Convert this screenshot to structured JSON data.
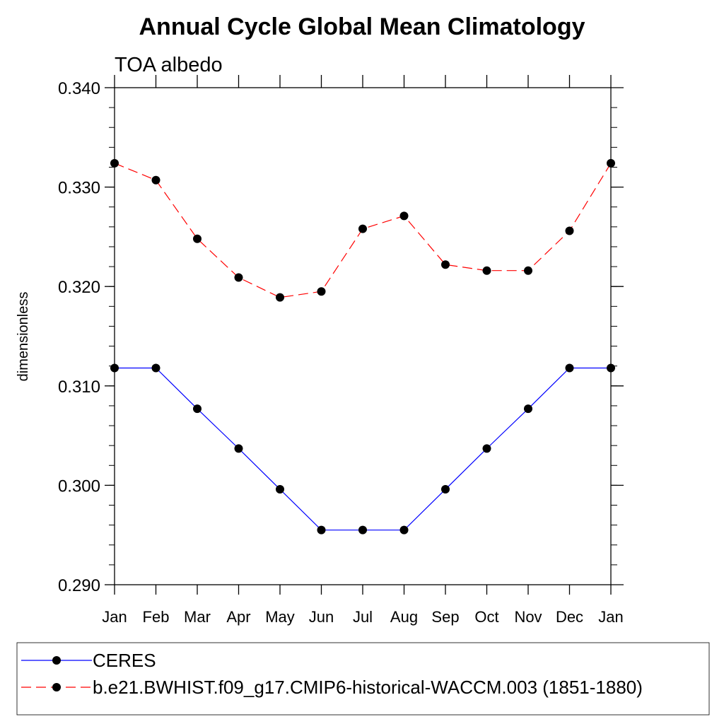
{
  "chart_data": {
    "type": "line",
    "title": "Annual Cycle Global Mean Climatology",
    "subtitle": "TOA albedo",
    "xlabel": "",
    "ylabel": "dimensionless",
    "categories": [
      "Jan",
      "Feb",
      "Mar",
      "Apr",
      "May",
      "Jun",
      "Jul",
      "Aug",
      "Sep",
      "Oct",
      "Nov",
      "Dec",
      "Jan"
    ],
    "ylim": [
      0.29,
      0.34
    ],
    "yticks": [
      "0.290",
      "0.300",
      "0.310",
      "0.320",
      "0.330",
      "0.340"
    ],
    "grid": false,
    "legend_position": "bottom",
    "series": [
      {
        "name": "CERES",
        "color": "#0000ff",
        "line_style": "solid",
        "marker": "filled-circle",
        "values": [
          0.3118,
          0.3118,
          0.3077,
          0.3037,
          0.2996,
          0.2955,
          0.2955,
          0.2955,
          0.2996,
          0.3037,
          0.3077,
          0.3118,
          0.3118
        ]
      },
      {
        "name": "b.e21.BWHIST.f09_g17.CMIP6-historical-WACCM.003 (1851-1880)",
        "color": "#ff0000",
        "line_style": "dashed",
        "marker": "filled-circle",
        "values": [
          0.3324,
          0.3307,
          0.3248,
          0.3209,
          0.3189,
          0.3195,
          0.3258,
          0.3271,
          0.3222,
          0.3216,
          0.3216,
          0.3256,
          0.3324
        ]
      }
    ]
  }
}
